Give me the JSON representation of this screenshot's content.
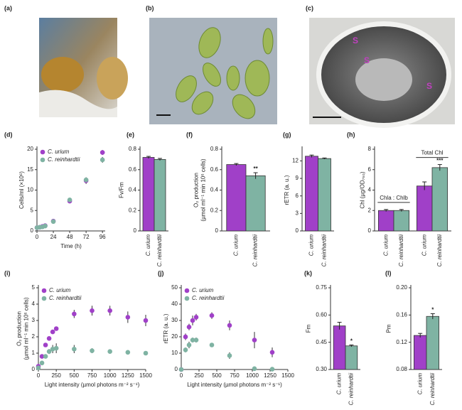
{
  "images": [
    {
      "label": "(a)"
    },
    {
      "label": "(b)"
    },
    {
      "label": "(c)",
      "annotations": [
        "S",
        "S",
        "S"
      ]
    }
  ],
  "chart_data": [
    {
      "type": "scatter",
      "label": "(d)",
      "y_label": [
        "Cells/ml (×10⁶)"
      ],
      "x_label": "Time (h)",
      "xlim": [
        0,
        100
      ],
      "xticks": [
        0,
        24,
        48,
        72,
        96
      ],
      "ylim": [
        0,
        20
      ],
      "yticks": [
        0,
        5,
        10,
        15,
        20
      ],
      "legend": "upper left",
      "series": [
        {
          "name": "C. urium",
          "color": "#a040c8",
          "x": [
            0,
            4,
            8,
            12,
            24,
            48,
            72,
            96
          ],
          "values": [
            0.8,
            0.9,
            1.1,
            1.3,
            2.4,
            7.3,
            12.3,
            19.2
          ],
          "errors": [
            0.1,
            0.1,
            0.1,
            0.1,
            0.2,
            0.5,
            0.8,
            0.6
          ]
        },
        {
          "name": "C. reinhardtii",
          "color": "#7fb3a3",
          "x": [
            0,
            4,
            8,
            12,
            24,
            48,
            72,
            96
          ],
          "values": [
            0.8,
            0.9,
            1.0,
            1.2,
            2.3,
            7.6,
            12.5,
            17.4
          ],
          "errors": [
            0.1,
            0.1,
            0.1,
            0.1,
            0.2,
            0.4,
            0.6,
            0.7
          ]
        }
      ]
    },
    {
      "type": "bar",
      "label": "(e)",
      "y_label": [
        "Fv/Fm"
      ],
      "ylim": [
        0,
        0.8
      ],
      "yticks": [
        0,
        0.2,
        0.4,
        0.6,
        0.8
      ],
      "categories": [
        "C. urium",
        "C. reinhardtii"
      ],
      "colors": [
        "#a040c8",
        "#7fb3a3"
      ],
      "groups": [
        {
          "values": [
            0.72,
            0.7
          ],
          "errors": [
            0.01,
            0.01
          ]
        }
      ]
    },
    {
      "type": "bar",
      "label": "(f)",
      "y_label": [
        "O₂ production",
        "(µmol ml⁻¹ min 10⁶ cells)"
      ],
      "ylim": [
        0,
        0.8
      ],
      "yticks": [
        0,
        0.2,
        0.4,
        0.6,
        0.8
      ],
      "categories": [
        "C. urium",
        "C. reinhardtii"
      ],
      "colors": [
        "#a040c8",
        "#7fb3a3"
      ],
      "groups": [
        {
          "values": [
            0.65,
            0.54
          ],
          "errors": [
            0.01,
            0.03
          ],
          "significance": "**"
        }
      ]
    },
    {
      "type": "bar",
      "label": "(g)",
      "y_label": [
        "rETR (a. u.)"
      ],
      "ylim": [
        0,
        14
      ],
      "yticks": [
        0,
        3,
        6,
        9,
        12
      ],
      "categories": [
        "C. urium",
        "C. reinhardtii"
      ],
      "colors": [
        "#a040c8",
        "#7fb3a3"
      ],
      "groups": [
        {
          "values": [
            12.8,
            12.4
          ],
          "errors": [
            0.2,
            0.1
          ]
        }
      ]
    },
    {
      "type": "bar",
      "label": "(h)",
      "y_label": [
        "Chl (µg/OD₇₅₀)"
      ],
      "ylim": [
        0,
        8
      ],
      "yticks": [
        0,
        2,
        4,
        6,
        8
      ],
      "categories": [
        "C. urium",
        "C. reinhardtii"
      ],
      "colors": [
        "#a040c8",
        "#7fb3a3"
      ],
      "groups": [
        {
          "label": "Chla : Chlb",
          "values": [
            2.0,
            2.0
          ],
          "errors": [
            0.1,
            0.1
          ]
        },
        {
          "label": "Total Chl",
          "values": [
            4.4,
            6.2
          ],
          "errors": [
            0.4,
            0.3
          ],
          "significance": "***"
        }
      ]
    },
    {
      "type": "scatter",
      "label": "(i)",
      "y_label": [
        "O₂ production",
        "(µmol ml⁻¹ min 10⁶ cells)"
      ],
      "x_label": "Light intensity (µmol photons m⁻² s⁻¹)",
      "xlim": [
        0,
        1500
      ],
      "xticks": [
        0,
        250,
        500,
        750,
        1000,
        1250,
        1500
      ],
      "ylim": [
        0,
        5
      ],
      "yticks": [
        0,
        1,
        2,
        3,
        4,
        5
      ],
      "legend": "upper left",
      "series": [
        {
          "name": "C. urium",
          "color": "#a040c8",
          "x": [
            0,
            50,
            100,
            150,
            200,
            250,
            500,
            750,
            1000,
            1250,
            1500
          ],
          "values": [
            0.2,
            0.8,
            1.5,
            1.9,
            2.3,
            2.5,
            3.4,
            3.6,
            3.6,
            3.2,
            3.0
          ],
          "errors": [
            0.05,
            0.1,
            0.1,
            0.1,
            0.1,
            0.1,
            0.25,
            0.3,
            0.3,
            0.35,
            0.35
          ]
        },
        {
          "name": "C. reinhardtii",
          "color": "#7fb3a3",
          "x": [
            0,
            50,
            100,
            150,
            200,
            250,
            500,
            750,
            1000,
            1250,
            1500
          ],
          "values": [
            0.1,
            0.4,
            0.8,
            1.1,
            1.25,
            1.3,
            1.25,
            1.15,
            1.1,
            1.05,
            1.0
          ],
          "errors": [
            0.05,
            0.1,
            0.1,
            0.15,
            0.25,
            0.3,
            0.25,
            0.15,
            0.1,
            0.05,
            0.05
          ]
        }
      ]
    },
    {
      "type": "scatter",
      "label": "(j)",
      "y_label": [
        "rETR (a. u.)"
      ],
      "x_label": "Light intensity (µmol photons m⁻² s⁻¹)",
      "xlim": [
        0,
        1500
      ],
      "xticks": [
        0,
        250,
        500,
        750,
        1000,
        1250,
        1500
      ],
      "ylim": [
        0,
        50
      ],
      "yticks": [
        0,
        10,
        20,
        30,
        40,
        50
      ],
      "legend": "upper left",
      "series": [
        {
          "name": "C. urium",
          "color": "#a040c8",
          "x": [
            0,
            60,
            110,
            160,
            210,
            430,
            680,
            1030,
            1280
          ],
          "values": [
            0,
            20,
            26,
            30,
            32,
            33,
            27,
            18,
            10.5
          ],
          "errors": [
            0,
            2,
            2,
            3,
            2,
            2,
            3,
            5,
            3
          ]
        },
        {
          "name": "C. reinhardtii",
          "color": "#7fb3a3",
          "x": [
            0,
            60,
            110,
            160,
            210,
            430,
            680,
            1030,
            1280
          ],
          "values": [
            0,
            12,
            15,
            18,
            18,
            15,
            8.5,
            0.5,
            0.2
          ],
          "errors": [
            0,
            1.5,
            2,
            1.5,
            1.5,
            1,
            2,
            0.3,
            0.2
          ]
        }
      ]
    },
    {
      "type": "bar",
      "label": "(k)",
      "y_label": [
        "Fm"
      ],
      "ylim": [
        0.3,
        0.75
      ],
      "yticks": [
        {
          "value": 0.3,
          "label": "0.30"
        },
        0.45,
        {
          "value": 0.6,
          "label": "0.60"
        },
        0.75
      ],
      "categories": [
        "C. urium",
        "C. reinhardtii"
      ],
      "colors": [
        "#a040c8",
        "#7fb3a3"
      ],
      "groups": [
        {
          "values": [
            0.54,
            0.43
          ],
          "errors": [
            0.02,
            0.005
          ],
          "significance": "*"
        }
      ]
    },
    {
      "type": "bar",
      "label": "(l)",
      "y_label": [
        "Pm"
      ],
      "ylim": [
        0.08,
        0.2
      ],
      "yticks": [
        0.08,
        0.12,
        0.16,
        {
          "value": 0.2,
          "label": "0.20"
        }
      ],
      "categories": [
        "C. urium",
        "C. reinhardtii"
      ],
      "colors": [
        "#a040c8",
        "#7fb3a3"
      ],
      "groups": [
        {
          "values": [
            0.13,
            0.158
          ],
          "errors": [
            0.003,
            0.004
          ],
          "significance": "*"
        }
      ]
    }
  ]
}
